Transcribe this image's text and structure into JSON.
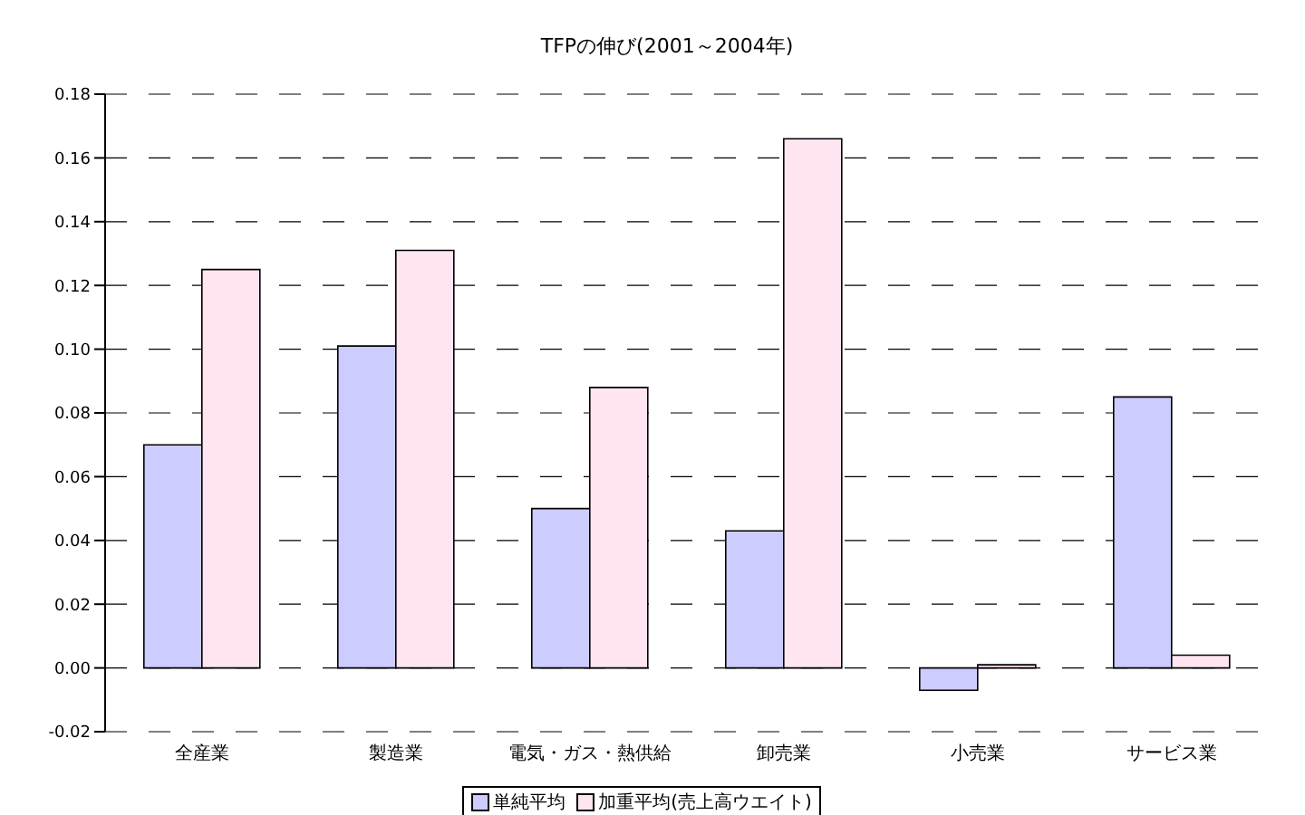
{
  "chart_data": {
    "type": "bar",
    "title": "TFPの伸び(2001～2004年)",
    "categories": [
      "全産業",
      "製造業",
      "電気・ガス・熱供給",
      "卸売業",
      "小売業",
      "サービス業"
    ],
    "series": [
      {
        "name": "単純平均",
        "color": "#ccccff",
        "values": [
          0.07,
          0.101,
          0.05,
          0.043,
          -0.007,
          0.085
        ]
      },
      {
        "name": "加重平均(売上高ウエイト)",
        "color": "#ffe4f1",
        "values": [
          0.125,
          0.131,
          0.088,
          0.166,
          0.001,
          0.004
        ]
      }
    ],
    "ylim": [
      -0.02,
      0.18
    ],
    "yticks": [
      {
        "value": -0.02,
        "label": "-0.02"
      },
      {
        "value": 0,
        "label": "0.00"
      },
      {
        "value": 0.02,
        "label": "0.02"
      },
      {
        "value": 0.04,
        "label": "0.04"
      },
      {
        "value": 0.06,
        "label": "0.06"
      },
      {
        "value": 0.08,
        "label": "0.08"
      },
      {
        "value": 0.1,
        "label": "0.10"
      },
      {
        "value": 0.12,
        "label": "0.12"
      },
      {
        "value": 0.14,
        "label": "0.14"
      },
      {
        "value": 0.16,
        "label": "0.16"
      },
      {
        "value": 0.18,
        "label": "0.18"
      }
    ],
    "grid": "y",
    "legend": "bottom"
  }
}
